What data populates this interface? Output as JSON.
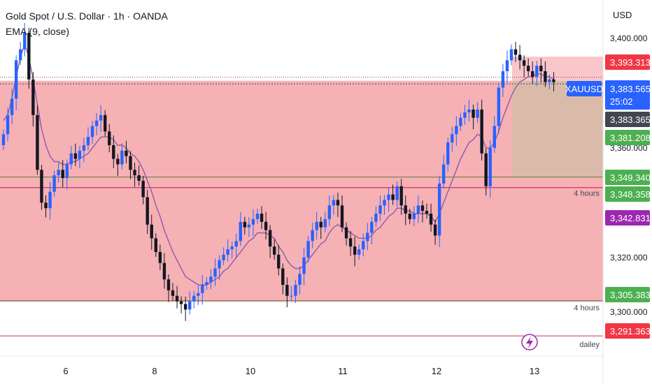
{
  "header": {
    "title": "Gold Spot / U.S. Dollar · 1h · OANDA",
    "indicator": "EMA (9, close)"
  },
  "axis": {
    "currency": "USD"
  },
  "colors": {
    "up": "#2962ff",
    "down": "#131722",
    "zone": "#f5a3a8",
    "ema": "#8e5ba8",
    "red_label": "#f23645",
    "green_label": "#4caf50",
    "purple_label": "#9c27b0",
    "dark_label": "#434651",
    "blue_label": "#2962ff"
  },
  "chart_data": {
    "type": "candlestick",
    "symbol": "XAUUSD",
    "x_ticks": [
      "6",
      "8",
      "10",
      "11",
      "12",
      "13"
    ],
    "y_ticks": [
      "3,400.000",
      "3,360.000",
      "3,320.000",
      "3,300.000"
    ],
    "ylim": [
      3284,
      3414
    ],
    "last_price": "3,383.565",
    "countdown": "25:02",
    "price_labels": [
      {
        "text": "3,393.313",
        "value": 3393.313,
        "kind": "red"
      },
      {
        "text": "3,383.365",
        "value": 3383.365,
        "kind": "dark"
      },
      {
        "text": "3,381.208",
        "value": 3381.208,
        "kind": "green"
      },
      {
        "text": "3,349.340",
        "value": 3349.34,
        "kind": "green"
      },
      {
        "text": "3,348.358",
        "value": 3348.358,
        "kind": "green"
      },
      {
        "text": "3,342.831",
        "value": 3342.831,
        "kind": "purple"
      },
      {
        "text": "3,305.383",
        "value": 3305.383,
        "kind": "green"
      },
      {
        "text": "3,291.363",
        "value": 3291.363,
        "kind": "red"
      }
    ],
    "levels": [
      {
        "value": 3384.5,
        "label": "4 hours"
      },
      {
        "value": 3345.5,
        "label": "4 hours"
      },
      {
        "value": 3303.8,
        "label": "4 hours"
      },
      {
        "value": 3291.363,
        "label": "dailey"
      }
    ],
    "close": [
      3365,
      3372,
      3378,
      3392,
      3396,
      3402,
      3385,
      3372,
      3352,
      3340,
      3338,
      3344,
      3350,
      3352,
      3349,
      3354,
      3358,
      3356,
      3359,
      3361,
      3364,
      3368,
      3370,
      3372,
      3366,
      3361,
      3356,
      3354,
      3359,
      3357,
      3352,
      3350,
      3348,
      3342,
      3332,
      3327,
      3322,
      3318,
      3312,
      3308,
      3306,
      3304,
      3303,
      3301,
      3304,
      3306,
      3307,
      3310,
      3311,
      3313,
      3316,
      3319,
      3321,
      3323,
      3324,
      3326,
      3333,
      3331,
      3332,
      3334,
      3336,
      3333,
      3330,
      3324,
      3321,
      3316,
      3310,
      3306,
      3306,
      3310,
      3314,
      3320,
      3326,
      3330,
      3333,
      3331,
      3334,
      3339,
      3341,
      3339,
      3331,
      3327,
      3324,
      3321,
      3323,
      3326,
      3329,
      3333,
      3336,
      3339,
      3341,
      3343,
      3341,
      3346,
      3339,
      3336,
      3334,
      3336,
      3339,
      3337,
      3336,
      3332,
      3328,
      3347,
      3354,
      3362,
      3365,
      3368,
      3371,
      3373,
      3374,
      3371,
      3374,
      3358,
      3346,
      3360,
      3368,
      3382,
      3388,
      3392,
      3396,
      3394,
      3392,
      3390,
      3388,
      3386,
      3390,
      3388,
      3384,
      3385,
      3384
    ],
    "ema": [
      3370,
      3372,
      3378,
      3386,
      3393,
      3398,
      3393,
      3385,
      3376,
      3367,
      3361,
      3357,
      3355,
      3355,
      3354,
      3354,
      3355,
      3355,
      3356,
      3357,
      3358,
      3360,
      3362,
      3364,
      3364,
      3364,
      3363,
      3361,
      3361,
      3360,
      3358,
      3357,
      3355,
      3352,
      3348,
      3344,
      3339,
      3335,
      3330,
      3326,
      3322,
      3319,
      3316,
      3313,
      3312,
      3311,
      3310,
      3310,
      3310,
      3311,
      3312,
      3313,
      3315,
      3316,
      3318,
      3320,
      3322,
      3324,
      3326,
      3327,
      3329,
      3329,
      3329,
      3328,
      3327,
      3324,
      3322,
      3319,
      3317,
      3316,
      3316,
      3317,
      3319,
      3321,
      3323,
      3325,
      3326,
      3329,
      3331,
      3332,
      3331,
      3330,
      3329,
      3328,
      3327,
      3327,
      3327,
      3328,
      3330,
      3331,
      3333,
      3335,
      3336,
      3338,
      3338,
      3337,
      3337,
      3336,
      3336,
      3336,
      3336,
      3335,
      3333,
      3336,
      3340,
      3344,
      3348,
      3352,
      3356,
      3359,
      3362,
      3363,
      3365,
      3364,
      3360,
      3360,
      3362,
      3366,
      3371,
      3375,
      3379,
      3382,
      3384,
      3385,
      3386,
      3386,
      3387,
      3387,
      3386,
      3386,
      3385
    ]
  }
}
